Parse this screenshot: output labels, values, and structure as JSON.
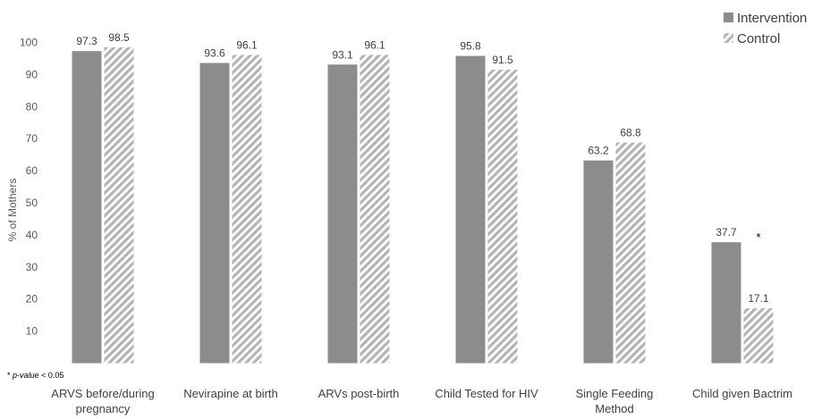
{
  "chart_data": {
    "type": "bar",
    "title": "",
    "xlabel": "",
    "ylabel": "% of Mothers",
    "ylim": [
      0,
      100
    ],
    "yticks": [
      10,
      20,
      30,
      40,
      50,
      60,
      70,
      80,
      90,
      100
    ],
    "grid": false,
    "legend_position": "top-right",
    "categories": [
      [
        "ARVS before/during",
        "pregnancy"
      ],
      [
        "Nevirapine at birth"
      ],
      [
        "ARVs post-birth"
      ],
      [
        "Child Tested for HIV"
      ],
      [
        "Single Feeding",
        "Method"
      ],
      [
        "Child given Bactrim"
      ]
    ],
    "series": [
      {
        "name": "Intervention",
        "pattern": "solid",
        "color": "#8c8c8c",
        "values": [
          97.3,
          93.6,
          93.1,
          95.8,
          63.2,
          37.7
        ],
        "labels": [
          "97.3",
          "93.6",
          "93.1",
          "95.8",
          "63.2",
          "37.7"
        ]
      },
      {
        "name": "Control",
        "pattern": "hatched",
        "color": "#b4b4b4",
        "values": [
          98.5,
          96.1,
          96.1,
          91.5,
          68.8,
          17.1
        ],
        "labels": [
          "98.5",
          "96.1",
          "96.1",
          "91.5",
          "68.8",
          "17.1"
        ]
      }
    ],
    "annotations": [
      {
        "text": "*",
        "category_index": 5
      }
    ],
    "footnote": {
      "marker": "* ",
      "italic_text": "p-value",
      "rest": " < 0.05"
    }
  }
}
